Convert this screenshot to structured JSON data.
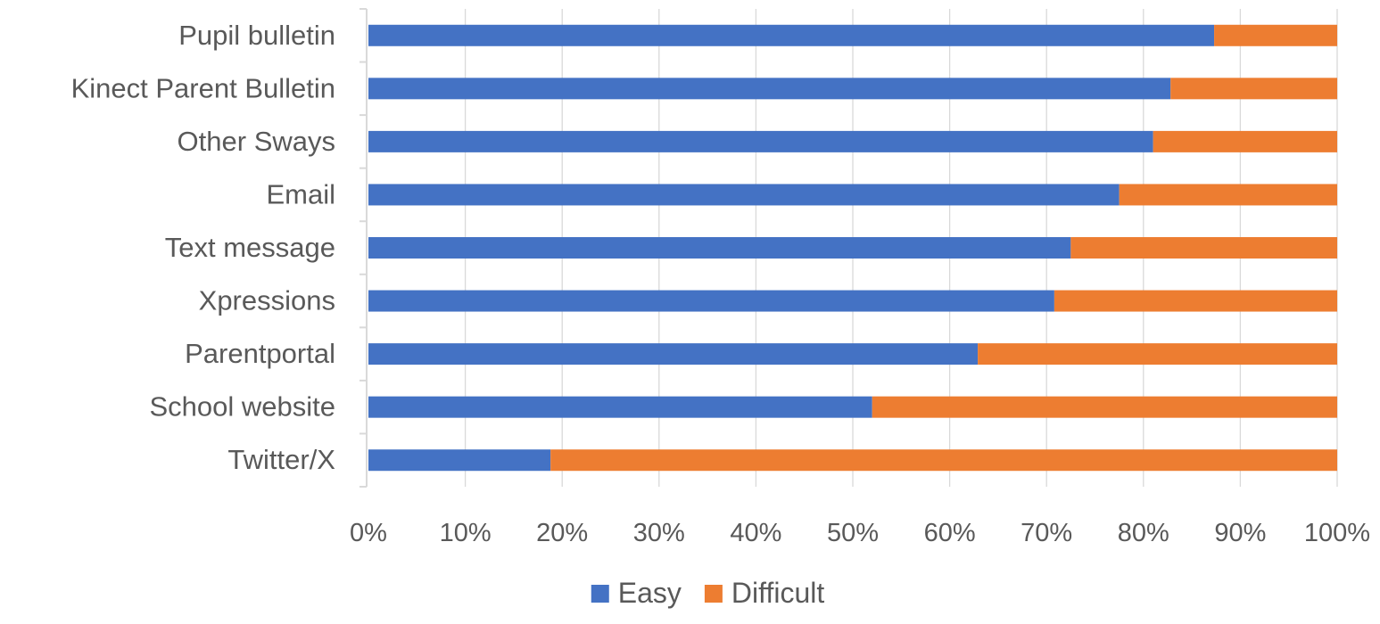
{
  "chart_data": {
    "type": "bar",
    "orientation": "horizontal",
    "stacked": "percent",
    "title": "",
    "xlabel": "",
    "ylabel": "",
    "xlim": [
      0,
      100
    ],
    "x_ticks": [
      "0%",
      "10%",
      "20%",
      "30%",
      "40%",
      "50%",
      "60%",
      "70%",
      "80%",
      "90%",
      "100%"
    ],
    "categories": [
      "Pupil bulletin",
      "Kinect Parent Bulletin",
      "Other Sways",
      "Email",
      "Text message",
      "Xpressions",
      "Parentportal",
      "School website",
      "Twitter/X"
    ],
    "series": [
      {
        "name": "Easy",
        "color": "#4472C4",
        "values": [
          87.3,
          82.8,
          81.0,
          77.5,
          72.5,
          70.8,
          62.9,
          52.0,
          18.8
        ]
      },
      {
        "name": "Difficult",
        "color": "#ED7D31",
        "values": [
          12.7,
          17.2,
          19.0,
          22.5,
          27.5,
          29.2,
          37.1,
          48.0,
          81.2
        ]
      }
    ],
    "grid": true,
    "legend_position": "bottom"
  }
}
